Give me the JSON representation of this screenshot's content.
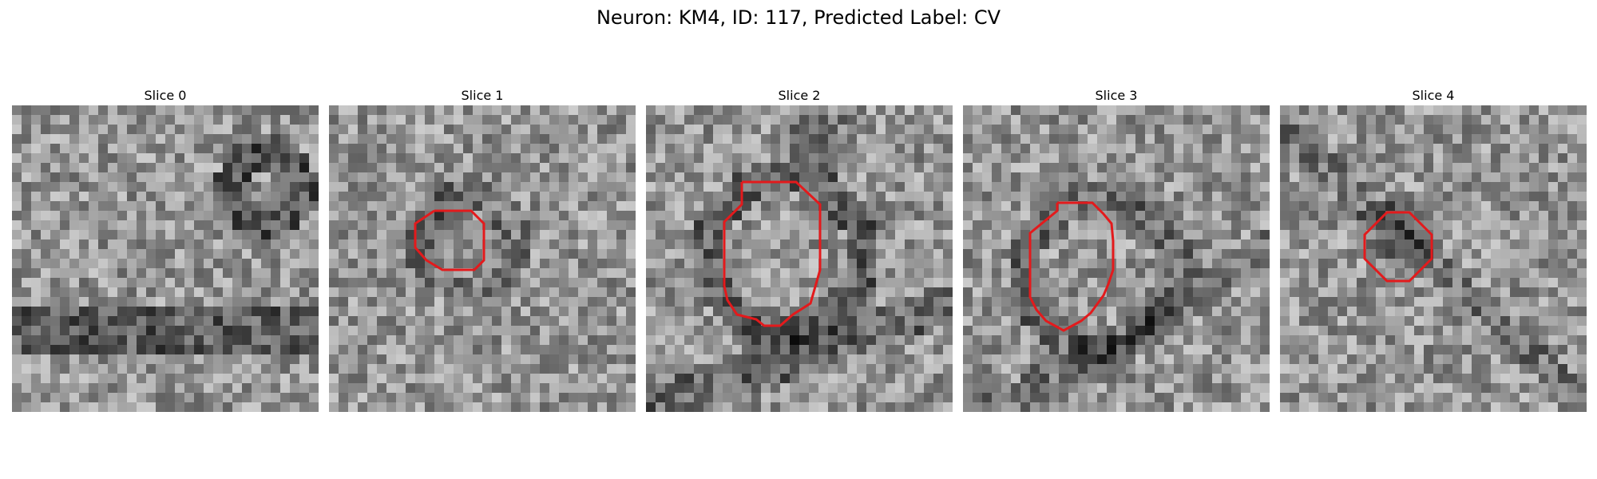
{
  "figure": {
    "title": "Neuron: KM4, ID: 117, Predicted Label: CV",
    "contour_color": "#e31a1c",
    "colormap": "grayscale"
  },
  "panels": [
    {
      "title": "Slice 0",
      "has_contour": false
    },
    {
      "title": "Slice 1",
      "has_contour": true
    },
    {
      "title": "Slice 2",
      "has_contour": true
    },
    {
      "title": "Slice 3",
      "has_contour": true
    },
    {
      "title": "Slice 4",
      "has_contour": true
    }
  ]
}
